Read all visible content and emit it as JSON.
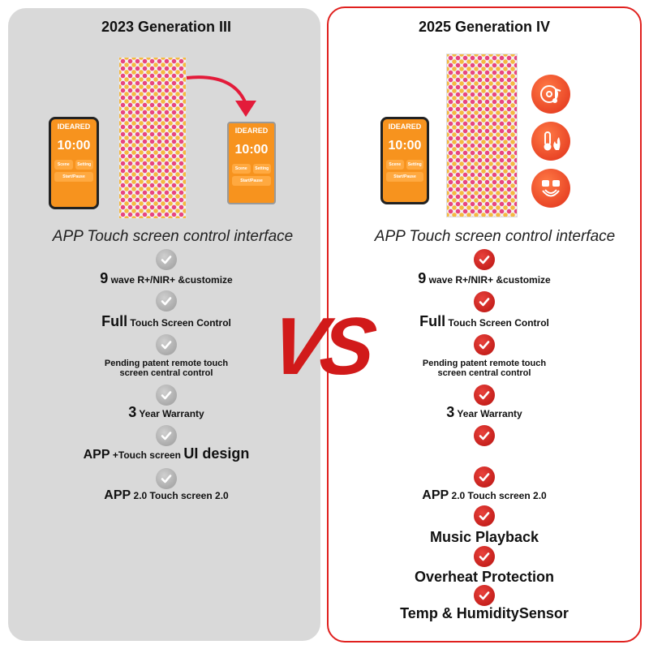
{
  "left": {
    "title": "2023 Generation III",
    "subtitle": "APP Touch screen control interface",
    "phone": {
      "brand": "IDEARED",
      "time": "10:00",
      "scene": "Scene",
      "setting": "Setting",
      "start": "Start/Pause"
    },
    "features": [
      {
        "strong": "9",
        "rest": " wave R+/NIR+ &customize"
      },
      {
        "strong": "Full",
        "rest": " Touch Screen Control"
      },
      {
        "line1": "Pending patent remote touch",
        "line2": "screen central control"
      },
      {
        "strong": "3",
        "rest": " Year Warranty"
      },
      {
        "strong": "APP",
        "rest": " +Touch screen ",
        "strong2": "UI design"
      },
      {
        "strong": "APP",
        "rest": " 2.0 Touch screen 2.0"
      }
    ]
  },
  "right": {
    "title": "2025 Generation IV",
    "subtitle": "APP Touch screen control interface",
    "phone": {
      "brand": "IDEARED",
      "time": "10:00",
      "scene": "Scene",
      "setting": "Setting",
      "start": "Start/Pause"
    },
    "features": [
      {
        "strong": "9",
        "rest": " wave R+/NIR+ &customize"
      },
      {
        "strong": "Full",
        "rest": " Touch Screen Control"
      },
      {
        "line1": "Pending patent remote touch",
        "line2": "screen central control"
      },
      {
        "strong": "3",
        "rest": " Year Warranty"
      },
      {
        "strong": "APP",
        "rest": " 2.0 Touch screen 2.0"
      },
      {
        "text": "Music Playback"
      },
      {
        "text": "Overheat Protection"
      },
      {
        "text": "Temp & HumiditySensor"
      }
    ],
    "feature_icons": [
      "music-disc-icon",
      "overheat-thermometer-icon",
      "temp-humidity-sensor-icon"
    ]
  },
  "vs": "VS",
  "colors": {
    "accent": "#e0201e",
    "gray_panel": "#d9d9d9",
    "phone": "#f7931e"
  }
}
